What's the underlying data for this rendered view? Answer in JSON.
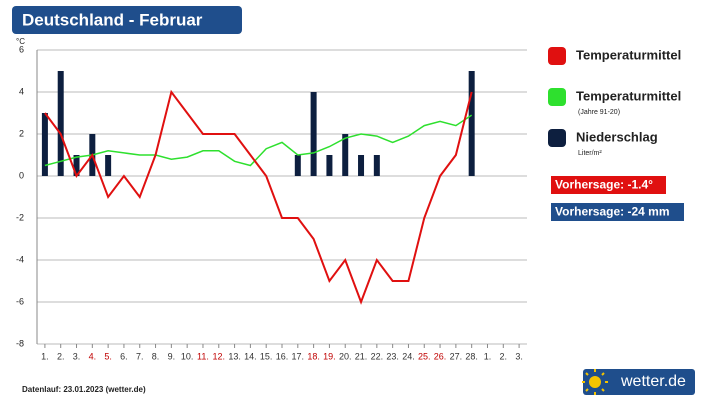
{
  "chart_data": {
    "type": "bar",
    "title": "Deutschland - Februar",
    "y_unit": "°C",
    "categories": [
      "1.",
      "2.",
      "3.",
      "4.",
      "5.",
      "6.",
      "7.",
      "8.",
      "9.",
      "10.",
      "11.",
      "12.",
      "13.",
      "14.",
      "15.",
      "16.",
      "17.",
      "18.",
      "19.",
      "20.",
      "21.",
      "22.",
      "23.",
      "24.",
      "25.",
      "26.",
      "27.",
      "28.",
      "1.",
      "2.",
      "3."
    ],
    "category_colors": [
      "#333",
      "#333",
      "#333",
      "#c00000",
      "#c00000",
      "#333",
      "#333",
      "#333",
      "#333",
      "#333",
      "#c00000",
      "#c00000",
      "#333",
      "#333",
      "#333",
      "#333",
      "#333",
      "#c00000",
      "#c00000",
      "#333",
      "#333",
      "#333",
      "#333",
      "#333",
      "#c00000",
      "#c00000",
      "#333",
      "#333",
      "#333",
      "#333",
      "#333"
    ],
    "series": [
      {
        "name": "Niederschlag",
        "note": "Liter/m²",
        "type": "bar",
        "color": "#0d1f3f",
        "values": [
          3,
          5,
          1,
          2,
          1,
          0,
          0,
          0,
          0,
          0,
          0,
          0,
          0,
          0,
          0,
          0,
          1,
          4,
          1,
          2,
          1,
          1,
          0,
          0,
          0,
          0,
          0,
          5,
          null,
          null,
          null
        ]
      },
      {
        "name": "Temperaturmittel",
        "type": "line",
        "color": "#e01010",
        "values": [
          3,
          2,
          0,
          1,
          -1,
          0,
          -1,
          1,
          4,
          3,
          2,
          2,
          2,
          1,
          0,
          -2,
          -2,
          -3,
          -5,
          -4,
          -6,
          -4,
          -5,
          -5,
          -2,
          0,
          1,
          4,
          null,
          null,
          null
        ]
      },
      {
        "name": "Temperaturmittel",
        "note": "(Jahre 91-20)",
        "type": "line",
        "color": "#2ee02e",
        "values": [
          0.5,
          0.7,
          0.9,
          1.0,
          1.2,
          1.1,
          1.0,
          1.0,
          0.8,
          0.9,
          1.2,
          1.2,
          0.7,
          0.5,
          1.3,
          1.6,
          1.0,
          1.1,
          1.4,
          1.8,
          2.0,
          1.9,
          1.6,
          1.9,
          2.4,
          2.6,
          2.4,
          2.9,
          null,
          null,
          null
        ]
      }
    ],
    "ylim": [
      -8,
      6
    ],
    "yticks": [
      6,
      4,
      2,
      0,
      -2,
      -4,
      -6,
      -8
    ],
    "grid": true,
    "forecasts": [
      {
        "label": "Vorhersage: -1.4°",
        "color": "#e01010"
      },
      {
        "label": "Vorhersage: -24 mm",
        "color": "#1f4e8c"
      }
    ],
    "footer": "Datenlauf: 23.01.2023 (wetter.de)",
    "logo": "wetter.de"
  }
}
